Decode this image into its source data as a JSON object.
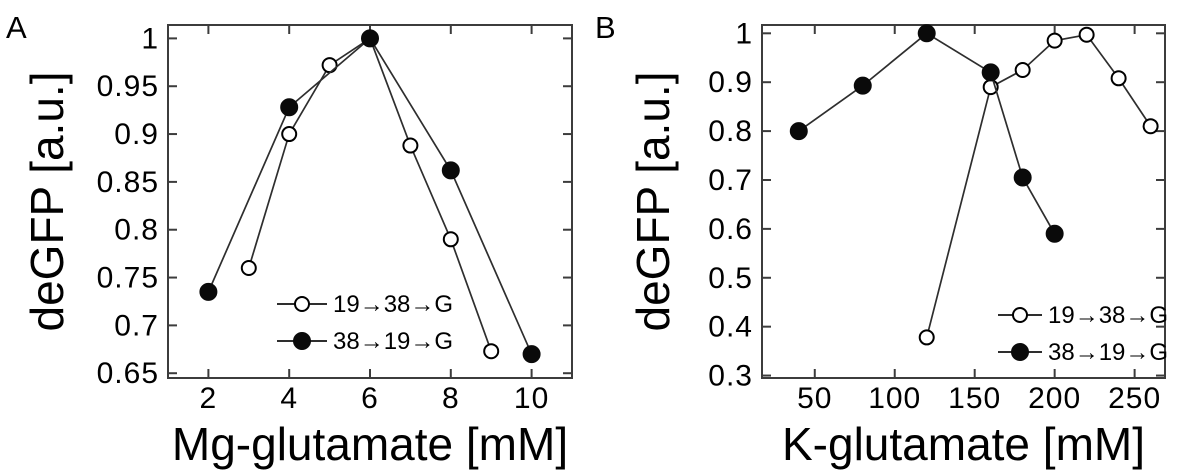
{
  "figure": {
    "background": "#ffffff",
    "ink_color": "#000000",
    "line_color": "#2e2e2e",
    "axis_color": "#3c3c3c",
    "open_marker_fill": "#ffffff",
    "filled_marker_fill": "#0a0a0a"
  },
  "panels": [
    {
      "letter": "A"
    },
    {
      "letter": "B"
    }
  ],
  "chart_data": [
    {
      "type": "line",
      "title": "",
      "xlabel": "Mg-glutamate [mM]",
      "ylabel": "deGFP [a.u.]",
      "xlim": [
        1,
        11
      ],
      "ylim": [
        0.645,
        1.014
      ],
      "xticks": [
        2,
        4,
        6,
        8,
        10
      ],
      "yticks": [
        0.65,
        0.7,
        0.75,
        0.8,
        0.85,
        0.9,
        0.95,
        1
      ],
      "grid": false,
      "legend_position": "inside lower-center",
      "series": [
        {
          "name": "19→38→G",
          "marker": "open-circle",
          "x": [
            3,
            4,
            5,
            6,
            7,
            8,
            9
          ],
          "y": [
            0.76,
            0.9,
            0.972,
            1.0,
            0.888,
            0.79,
            0.673
          ]
        },
        {
          "name": "38→19→G",
          "marker": "filled-circle",
          "x": [
            2,
            4,
            6,
            8,
            10
          ],
          "y": [
            0.735,
            0.928,
            1.0,
            0.862,
            0.67
          ]
        }
      ]
    },
    {
      "type": "line",
      "title": "",
      "xlabel": "K-glutamate [mM]",
      "ylabel": "deGFP [a.u.]",
      "xlim": [
        17,
        269
      ],
      "ylim": [
        0.295,
        1.017
      ],
      "xticks": [
        50,
        100,
        150,
        200,
        250
      ],
      "yticks": [
        0.3,
        0.4,
        0.5,
        0.6,
        0.7,
        0.8,
        0.9,
        1
      ],
      "grid": false,
      "legend_position": "inside lower-right",
      "series": [
        {
          "name": "19→38→G",
          "marker": "open-circle",
          "x": [
            120,
            160,
            180,
            200,
            220,
            240,
            260
          ],
          "y": [
            0.378,
            0.89,
            0.925,
            0.985,
            0.997,
            0.908,
            0.81
          ]
        },
        {
          "name": "38→19→G",
          "marker": "filled-circle",
          "x": [
            40,
            80,
            120,
            160,
            180,
            200
          ],
          "y": [
            0.8,
            0.893,
            1.0,
            0.92,
            0.705,
            0.59
          ]
        }
      ]
    }
  ]
}
